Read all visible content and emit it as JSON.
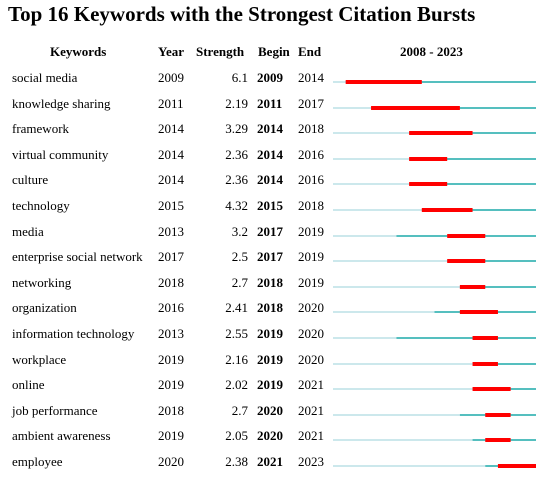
{
  "chart_data": {
    "type": "table",
    "title": "Top 16 Keywords with the Strongest Citation Bursts",
    "columns": [
      "Keywords",
      "Year",
      "Strength",
      "Begin",
      "End"
    ],
    "timeline_label": "2008 - 2023",
    "timeline_range": [
      2008,
      2023
    ],
    "colors": {
      "burst": "#ff0000",
      "active": "#55bfbf",
      "inactive": "#cce8ec"
    },
    "rows": [
      {
        "keyword": "social media",
        "year": "2009",
        "strength": "6.1",
        "begin": "2009",
        "end": "2014"
      },
      {
        "keyword": "knowledge sharing",
        "year": "2011",
        "strength": "2.19",
        "begin": "2011",
        "end": "2017"
      },
      {
        "keyword": "framework",
        "year": "2014",
        "strength": "3.29",
        "begin": "2014",
        "end": "2018"
      },
      {
        "keyword": "virtual community",
        "year": "2014",
        "strength": "2.36",
        "begin": "2014",
        "end": "2016"
      },
      {
        "keyword": "culture",
        "year": "2014",
        "strength": "2.36",
        "begin": "2014",
        "end": "2016"
      },
      {
        "keyword": "technology",
        "year": "2015",
        "strength": "4.32",
        "begin": "2015",
        "end": "2018"
      },
      {
        "keyword": "media",
        "year": "2013",
        "strength": "3.2",
        "begin": "2017",
        "end": "2019"
      },
      {
        "keyword": "enterprise social network",
        "year": "2017",
        "strength": "2.5",
        "begin": "2017",
        "end": "2019"
      },
      {
        "keyword": "networking",
        "year": "2018",
        "strength": "2.7",
        "begin": "2018",
        "end": "2019"
      },
      {
        "keyword": "organization",
        "year": "2016",
        "strength": "2.41",
        "begin": "2018",
        "end": "2020"
      },
      {
        "keyword": "information technology",
        "year": "2013",
        "strength": "2.55",
        "begin": "2019",
        "end": "2020"
      },
      {
        "keyword": "workplace",
        "year": "2019",
        "strength": "2.16",
        "begin": "2019",
        "end": "2020"
      },
      {
        "keyword": "online",
        "year": "2019",
        "strength": "2.02",
        "begin": "2019",
        "end": "2021"
      },
      {
        "keyword": "job performance",
        "year": "2018",
        "strength": "2.7",
        "begin": "2020",
        "end": "2021"
      },
      {
        "keyword": "ambient awareness",
        "year": "2019",
        "strength": "2.05",
        "begin": "2020",
        "end": "2021"
      },
      {
        "keyword": "employee",
        "year": "2020",
        "strength": "2.38",
        "begin": "2021",
        "end": "2023"
      }
    ]
  }
}
